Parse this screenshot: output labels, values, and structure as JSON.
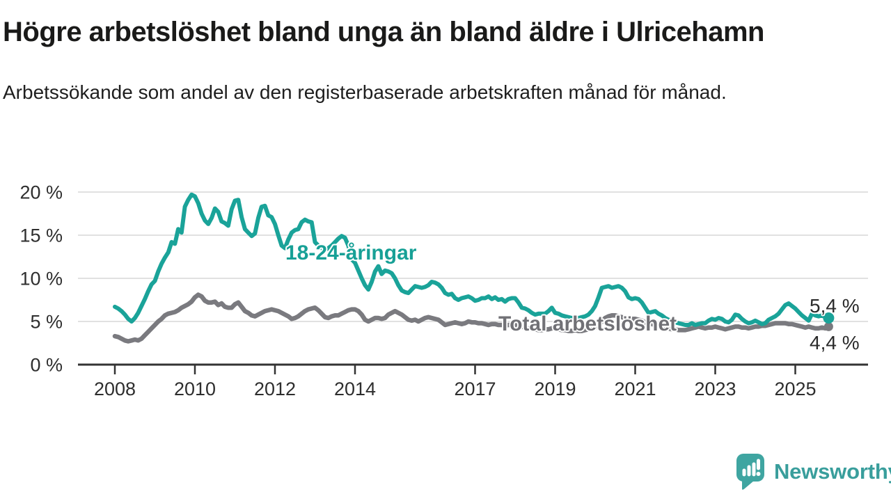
{
  "branding": {
    "logo_text": "Newsworthy",
    "logo_icon": "speech-bubble-bar-chart",
    "logo_color": "#3FA5A1",
    "logo_text_color": "#399E9C"
  },
  "chart_data": {
    "type": "line",
    "title": "Högre arbetslöshet bland unga än bland äldre i Ulricehamn",
    "subtitle": "Arbetssökande som andel av den registerbaserade arbetskraften månad för månad.",
    "unit": "%",
    "x_start": {
      "year": 2008,
      "month": 1
    },
    "x_end": {
      "year": 2025,
      "month": 11
    },
    "x_tick_years": [
      2008,
      2010,
      2012,
      2014,
      2017,
      2019,
      2021,
      2023,
      2025
    ],
    "x_tick_labels": [
      "2008",
      "2010",
      "2012",
      "2014",
      "2017",
      "2019",
      "2021",
      "2023",
      "2025"
    ],
    "y_ticks": [
      0,
      5,
      10,
      15,
      20
    ],
    "y_tick_labels": [
      "0 %",
      "5 %",
      "10 %",
      "15 %",
      "20 %"
    ],
    "ylim": [
      0,
      21
    ],
    "grid": "horizontal",
    "axis_color": "#333333",
    "grid_color": "#E1E1E1",
    "tick_text_color": "#2E2E2E",
    "annotation_text_color": "#2A2A2A",
    "series": [
      {
        "name": "18-24-åringar",
        "color": "#1AA399",
        "label_text_color": "#17A096",
        "end_value": 5.4,
        "end_value_label": "5,4 %",
        "values": [
          6.7,
          6.5,
          6.2,
          5.8,
          5.3,
          5.0,
          5.4,
          6.0,
          6.8,
          7.6,
          8.5,
          9.3,
          9.7,
          10.8,
          11.7,
          12.4,
          13.0,
          14.2,
          14.0,
          15.7,
          15.3,
          18.3,
          19.1,
          19.7,
          19.5,
          18.7,
          17.5,
          16.7,
          16.3,
          17.0,
          18.1,
          17.7,
          16.6,
          16.4,
          16.1,
          18.0,
          19.0,
          19.1,
          17.1,
          15.7,
          15.3,
          14.9,
          15.2,
          17.0,
          18.3,
          18.4,
          17.3,
          17.1,
          16.3,
          15.0,
          13.8,
          13.5,
          14.5,
          15.3,
          15.6,
          15.7,
          16.5,
          16.8,
          16.6,
          16.5,
          14.2,
          13.8,
          13.5,
          13.3,
          13.5,
          13.8,
          14.2,
          14.6,
          14.9,
          14.7,
          13.8,
          12.2,
          11.8,
          10.9,
          10.0,
          9.2,
          8.7,
          9.6,
          10.8,
          11.4,
          10.5,
          10.9,
          10.8,
          10.6,
          10.0,
          9.2,
          8.6,
          8.4,
          8.3,
          8.7,
          9.1,
          9.0,
          8.9,
          9.0,
          9.2,
          9.6,
          9.5,
          9.3,
          8.9,
          8.3,
          8.1,
          8.2,
          7.7,
          7.5,
          7.7,
          7.8,
          7.9,
          7.7,
          7.4,
          7.5,
          7.7,
          7.7,
          7.9,
          7.6,
          7.8,
          7.5,
          7.6,
          7.3,
          7.6,
          7.7,
          7.7,
          7.2,
          6.6,
          6.5,
          6.3,
          6.0,
          5.8,
          5.9,
          5.9,
          5.9,
          6.2,
          6.6,
          6.0,
          5.9,
          5.7,
          5.6,
          5.5,
          5.4,
          5.5,
          5.4,
          5.5,
          5.6,
          5.8,
          6.2,
          6.8,
          7.8,
          8.9,
          9.0,
          9.1,
          8.9,
          9.0,
          9.1,
          8.9,
          8.5,
          7.8,
          7.6,
          7.7,
          7.6,
          7.2,
          6.6,
          6.0,
          6.1,
          6.2,
          5.9,
          5.7,
          5.4,
          5.2,
          5.0,
          4.9,
          4.8,
          4.7,
          4.6,
          4.6,
          4.8,
          4.6,
          4.7,
          4.8,
          4.8,
          5.1,
          5.3,
          5.2,
          5.4,
          5.3,
          5.0,
          4.9,
          5.2,
          5.8,
          5.7,
          5.3,
          5.0,
          4.8,
          4.9,
          5.1,
          4.9,
          4.7,
          4.8,
          5.2,
          5.4,
          5.6,
          5.9,
          6.4,
          6.9,
          7.1,
          6.8,
          6.5,
          6.1,
          5.7,
          5.4,
          5.1,
          5.9,
          5.7,
          5.6,
          5.7,
          5.5,
          5.4
        ]
      },
      {
        "name": "Total arbetslöshet",
        "color": "#7A7A7F",
        "label_text_color": "#717176",
        "end_value": 4.4,
        "end_value_label": "4,4 %",
        "values": [
          3.3,
          3.2,
          3.0,
          2.8,
          2.7,
          2.8,
          2.9,
          2.8,
          3.0,
          3.4,
          3.8,
          4.2,
          4.6,
          5.0,
          5.3,
          5.7,
          5.9,
          6.0,
          6.1,
          6.3,
          6.6,
          6.8,
          7.0,
          7.3,
          7.8,
          8.1,
          7.9,
          7.4,
          7.2,
          7.2,
          7.3,
          6.9,
          7.1,
          6.7,
          6.6,
          6.6,
          7.0,
          7.2,
          6.7,
          6.2,
          6.0,
          5.7,
          5.6,
          5.8,
          6.0,
          6.2,
          6.3,
          6.4,
          6.3,
          6.2,
          6.0,
          5.8,
          5.6,
          5.3,
          5.4,
          5.6,
          5.9,
          6.2,
          6.4,
          6.5,
          6.6,
          6.3,
          5.9,
          5.5,
          5.4,
          5.6,
          5.7,
          5.7,
          5.9,
          6.1,
          6.3,
          6.4,
          6.4,
          6.2,
          5.8,
          5.2,
          5.0,
          5.2,
          5.4,
          5.4,
          5.3,
          5.4,
          5.8,
          6.0,
          6.2,
          6.0,
          5.8,
          5.5,
          5.2,
          5.1,
          5.2,
          5.0,
          5.2,
          5.4,
          5.5,
          5.4,
          5.3,
          5.2,
          4.9,
          4.6,
          4.7,
          4.8,
          4.9,
          4.8,
          4.7,
          4.8,
          5.0,
          4.9,
          4.9,
          4.8,
          4.8,
          4.7,
          4.6,
          4.7,
          4.7,
          4.6,
          4.6,
          4.5,
          4.6,
          4.6,
          4.6,
          4.5,
          4.4,
          4.3,
          4.2,
          4.1,
          4.1,
          4.0,
          4.0,
          4.1,
          4.1,
          4.2,
          4.2,
          4.1,
          4.0,
          4.0,
          3.9,
          3.9,
          4.0,
          3.9,
          3.9,
          4.0,
          4.1,
          4.2,
          4.3,
          4.5,
          5.0,
          5.4,
          5.6,
          5.7,
          5.7,
          5.6,
          5.5,
          5.4,
          5.3,
          5.3,
          5.3,
          5.2,
          5.1,
          4.9,
          4.8,
          4.7,
          4.6,
          4.5,
          4.4,
          4.3,
          4.2,
          4.1,
          4.1,
          4.0,
          4.0,
          4.0,
          4.1,
          4.2,
          4.3,
          4.4,
          4.3,
          4.2,
          4.3,
          4.3,
          4.4,
          4.3,
          4.2,
          4.1,
          4.2,
          4.3,
          4.4,
          4.4,
          4.3,
          4.3,
          4.2,
          4.3,
          4.4,
          4.4,
          4.5,
          4.5,
          4.6,
          4.7,
          4.8,
          4.8,
          4.8,
          4.8,
          4.7,
          4.7,
          4.6,
          4.5,
          4.4,
          4.3,
          4.4,
          4.3,
          4.2,
          4.2,
          4.3,
          4.2,
          4.4
        ]
      }
    ]
  }
}
